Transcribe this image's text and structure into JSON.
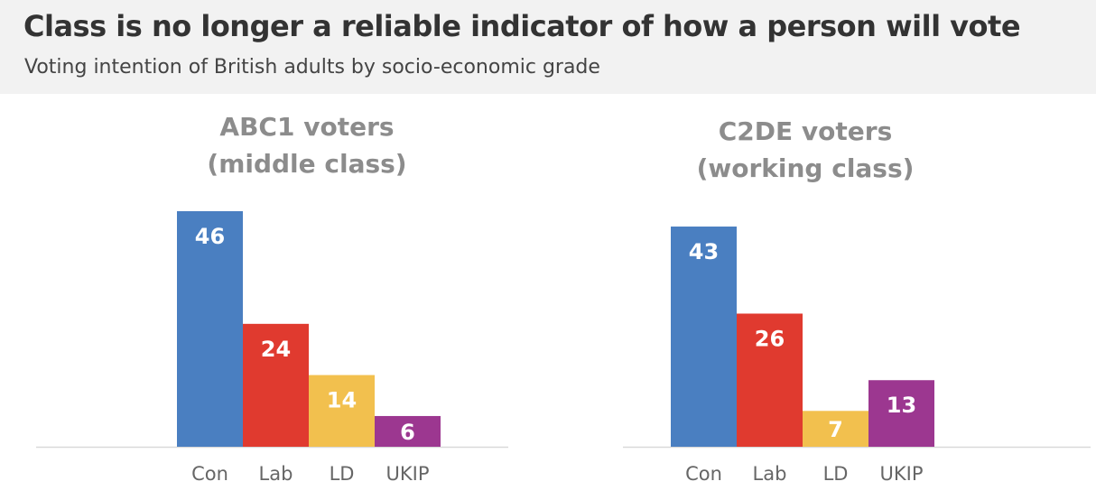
{
  "header": {
    "title": "Class is no longer a reliable indicator of how a person will vote",
    "subtitle": "Voting intention of British adults by socio-economic grade"
  },
  "chart_data": [
    {
      "type": "bar",
      "title_lines": [
        "ABC1 voters",
        "(middle class)"
      ],
      "categories": [
        "Con",
        "Lab",
        "LD",
        "UKIP"
      ],
      "values": [
        46,
        24,
        14,
        6
      ],
      "colors": [
        "#4a7fc1",
        "#e03a2f",
        "#f2c04e",
        "#9c3790"
      ],
      "ylim": [
        0,
        46
      ],
      "xlabel": "",
      "ylabel": "",
      "grid": false
    },
    {
      "type": "bar",
      "title_lines": [
        "C2DE voters",
        "(working class)"
      ],
      "categories": [
        "Con",
        "Lab",
        "LD",
        "UKIP"
      ],
      "values": [
        43,
        26,
        7,
        13
      ],
      "colors": [
        "#4a7fc1",
        "#e03a2f",
        "#f2c04e",
        "#9c3790"
      ],
      "ylim": [
        0,
        46
      ],
      "xlabel": "",
      "ylabel": "",
      "grid": false
    }
  ]
}
